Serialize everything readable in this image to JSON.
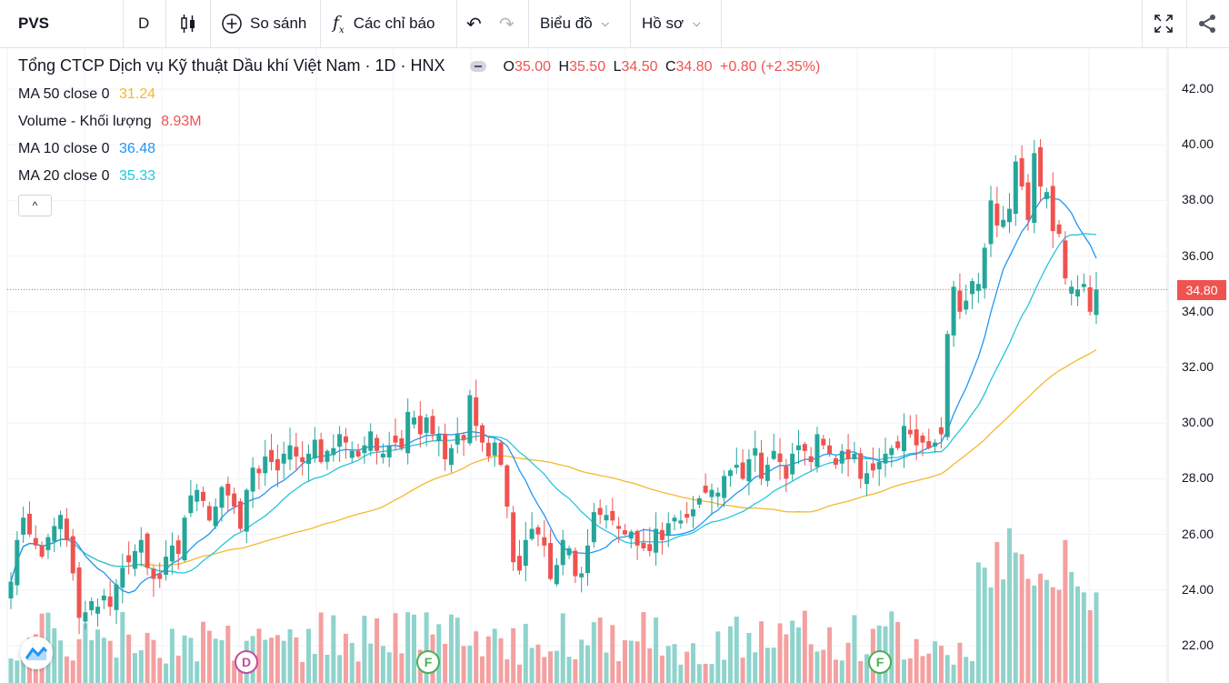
{
  "toolbar": {
    "symbol": "PVS",
    "interval": "D",
    "candle_icon": "candles-icon",
    "compare_label": "So sánh",
    "indicators_label": "Các chỉ báo",
    "chart_menu": "Biểu đồ",
    "profile_menu": "Hồ sơ"
  },
  "legend": {
    "title": "Tổng CTCP Dịch vụ Kỹ thuật Dầu khí Việt Nam · 1D · HNX",
    "o_label": "O",
    "o": "35.00",
    "h_label": "H",
    "h": "35.50",
    "l_label": "L",
    "l": "34.50",
    "c_label": "C",
    "c": "34.80",
    "change": "+0.80 (+2.35%)",
    "ma50_label": "MA 50 close 0",
    "ma50": "31.24",
    "vol_label": "Volume - Khối lượng",
    "vol": "8.93M",
    "ma10_label": "MA 10 close 0",
    "ma10": "36.48",
    "ma20_label": "MA 20 close 0",
    "ma20": "35.33",
    "collapse": "^"
  },
  "last_price_tag": "34.80",
  "events": {
    "d": "D",
    "f1": "F",
    "f2": "F"
  },
  "colors": {
    "up": "#26a69a",
    "down": "#ef5350",
    "ma50": "#f5b82e",
    "ma10": "#2196f3",
    "ma20": "#26c6da",
    "vol_up": "#8fd3cc",
    "vol_down": "#f4a0a0"
  },
  "chart_data": {
    "type": "candlestick",
    "title": "Tổng CTCP Dịch vụ Kỹ thuật Dầu khí Việt Nam · 1D · HNX",
    "ylim": [
      21.2,
      43.0
    ],
    "yticks": [
      "22.00",
      "24.00",
      "26.00",
      "28.00",
      "30.00",
      "32.00",
      "34.00",
      "36.00",
      "38.00",
      "40.00",
      "42.00"
    ],
    "ohlc_hint": "approximate reconstruction of ~200 daily bars",
    "closes": [
      24.3,
      25.8,
      26.6,
      26.0,
      25.6,
      25.2,
      25.9,
      26.3,
      26.7,
      25.8,
      24.6,
      23.0,
      23.2,
      23.6,
      23.4,
      23.8,
      23.4,
      24.2,
      24.8,
      25.0,
      25.4,
      25.8,
      24.8,
      24.4,
      24.4,
      25.2,
      25.6,
      25.3,
      26.6,
      27.4,
      27.6,
      27.2,
      26.5,
      27.0,
      27.7,
      27.4,
      27.0,
      26.2,
      27.6,
      28.4,
      28.2,
      28.8,
      28.6,
      28.3,
      28.9,
      29.2,
      28.8,
      28.6,
      28.9,
      29.4,
      28.6,
      29.0,
      29.1,
      29.6,
      29.3,
      29.0,
      28.8,
      29.2,
      29.7,
      29.0,
      28.9,
      29.2,
      29.3,
      29.1,
      30.4,
      30.2,
      29.6,
      30.2,
      29.6,
      29.6,
      28.7,
      29.1,
      29.6,
      29.4,
      31.0,
      29.9,
      29.3,
      28.8,
      29.3,
      28.5,
      27.0,
      25.0,
      24.7,
      25.8,
      26.2,
      26.0,
      25.6,
      24.4,
      24.9,
      25.8,
      25.5,
      24.5,
      24.6,
      25.6,
      26.8,
      26.7,
      26.7,
      26.5,
      26.2,
      26.0,
      26.1,
      25.6,
      25.5,
      25.4,
      26.2,
      25.8,
      26.4,
      26.6,
      26.5,
      26.6,
      26.9,
      27.3,
      27.5,
      27.6,
      27.5,
      28.1,
      28.3,
      28.5,
      28.0,
      28.7,
      29.1,
      28.0,
      28.5,
      29.0,
      28.6,
      28.0,
      28.9,
      29.2,
      29.0,
      28.6,
      29.6,
      29.2,
      28.9,
      28.5,
      29.0,
      28.7,
      28.9,
      28.0,
      28.2,
      28.3,
      28.6,
      28.9,
      29.1,
      29.1,
      29.9,
      29.6,
      29.2,
      29.3,
      29.1,
      29.3,
      29.6,
      33.2,
      34.9,
      34.0,
      34.4,
      35.1,
      35.0,
      36.3,
      38.0,
      37.1,
      37.3,
      37.7,
      39.4,
      38.5,
      37.3,
      39.7,
      38.5,
      38.3,
      36.9,
      36.8,
      35.2,
      34.9,
      34.8,
      35.0,
      34.0,
      34.8
    ],
    "ma50_end": 31.24,
    "ma10_end": 36.48,
    "ma20_end": 35.33,
    "volume_last": "8.93M"
  }
}
